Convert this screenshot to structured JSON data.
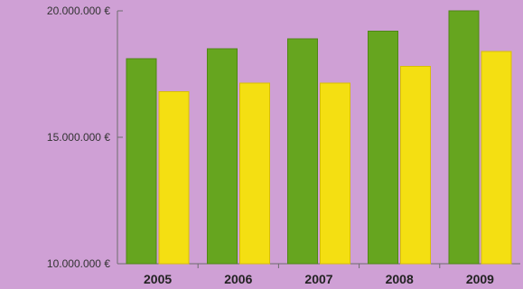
{
  "chart_data": {
    "type": "bar",
    "title": "",
    "xlabel": "",
    "ylabel": "",
    "categories": [
      "2005",
      "2006",
      "2007",
      "2008",
      "2009"
    ],
    "series": [
      {
        "values": [
          18100000,
          18500000,
          18900000,
          19200000,
          20000000
        ]
      },
      {
        "values": [
          16800000,
          17150000,
          17150000,
          17800000,
          18400000
        ]
      }
    ],
    "ylim": [
      10000000,
      20000000
    ],
    "yticks": [
      {
        "value": 10000000,
        "label": "10.000.000 €"
      },
      {
        "value": 15000000,
        "label": "15.000.000 €"
      },
      {
        "value": 20000000,
        "label": "20.000.000 €"
      }
    ],
    "grid": false,
    "legend": false,
    "colors": {
      "background": "#cfa0d5",
      "series_1": "#66a51f",
      "series_1_edge": "#4f8615",
      "series_2": "#f4df12",
      "series_2_edge": "#d8bf05",
      "axis": "#6d6d6d"
    }
  }
}
